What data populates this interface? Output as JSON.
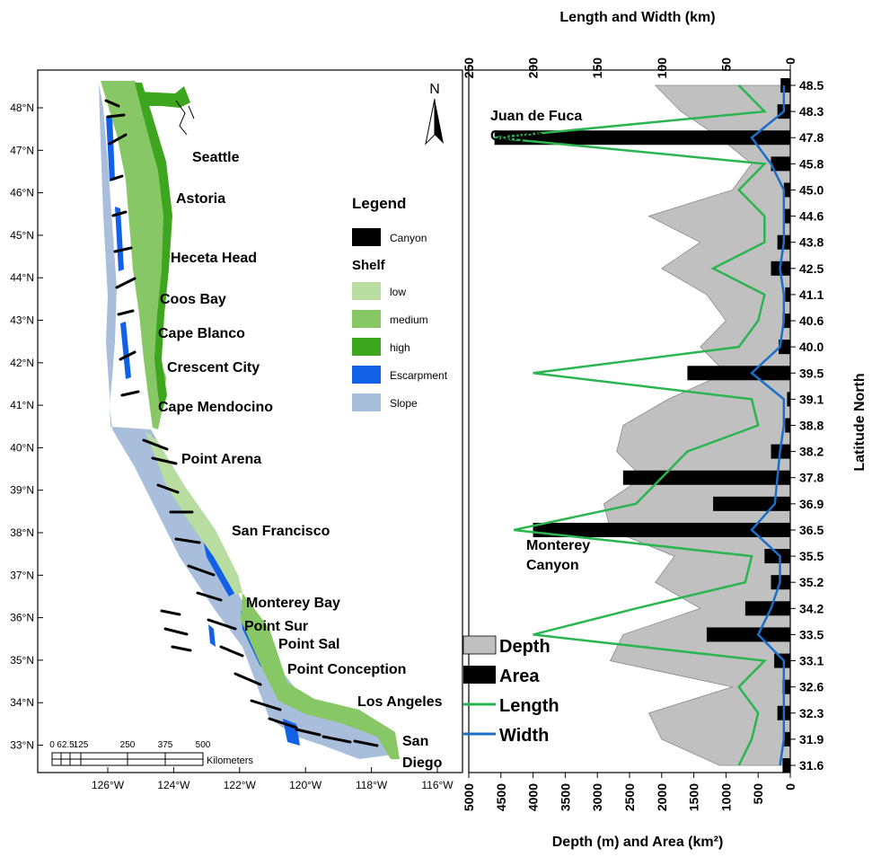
{
  "map": {
    "lat_ticks": [
      "48°N",
      "47°N",
      "46°N",
      "45°N",
      "44°N",
      "43°N",
      "42°N",
      "41°N",
      "40°N",
      "39°N",
      "38°N",
      "37°N",
      "36°N",
      "35°N",
      "34°N",
      "33°N"
    ],
    "lon_ticks": [
      "126°W",
      "124°W",
      "122°W",
      "120°W",
      "118°W",
      "116°W"
    ],
    "places": [
      "Seattle",
      "Astoria",
      "Heceta Head",
      "Coos Bay",
      "Cape Blanco",
      "Crescent City",
      "Cape Mendocino",
      "Point Arena",
      "San Francisco",
      "Monterey Bay",
      "Point Sur",
      "Point Sal",
      "Point Conception",
      "Los Angeles",
      "San",
      "Diego"
    ],
    "north": "N",
    "legend": {
      "title": "Legend",
      "canyon": "Canyon",
      "shelf_title": "Shelf",
      "items": [
        "low",
        "medium",
        "high",
        "Escarpment",
        "Slope"
      ]
    },
    "scale": {
      "ticks": [
        "0",
        "62.5",
        "125",
        "250",
        "375",
        "500"
      ],
      "unit": "Kilometers"
    },
    "colors": {
      "canyon": "#000000",
      "shelf_low": "#b9dca0",
      "shelf_medium": "#88c765",
      "shelf_high": "#3ea51e",
      "escarpment": "#1160e6",
      "slope": "#a8bedb"
    }
  },
  "chart_data": {
    "type": "bar",
    "orientation": "horizontal",
    "top_axis": {
      "label": "Length and Width (km)",
      "ticks": [
        "250",
        "200",
        "150",
        "100",
        "50",
        "0"
      ],
      "range": [
        0,
        250
      ]
    },
    "bottom_axis": {
      "label": "Depth (m) and Area (km²)",
      "ticks": [
        "5000",
        "4500",
        "4000",
        "3500",
        "3000",
        "2500",
        "2000",
        "1500",
        "1000",
        "500",
        "0"
      ],
      "range": [
        0,
        5000
      ]
    },
    "right_axis": {
      "label": "Latitude North",
      "ticks": [
        "48.5",
        "48.3",
        "47.8",
        "45.8",
        "45.0",
        "44.6",
        "43.8",
        "42.5",
        "41.1",
        "40.6",
        "40.0",
        "39.5",
        "39.1",
        "38.8",
        "38.2",
        "37.8",
        "36.9",
        "36.5",
        "35.5",
        "35.2",
        "34.2",
        "33.5",
        "33.1",
        "32.6",
        "32.3",
        "31.9",
        "31.6"
      ]
    },
    "annotations": [
      "Juan de Fuca",
      "Canyon",
      "Monterey",
      "Canyon"
    ],
    "legend": [
      "Depth",
      "Area",
      "Length",
      "Width"
    ],
    "colors": {
      "depth": "#c0c0c0",
      "area": "#000000",
      "length": "#2bb550",
      "width": "#1a70c8"
    },
    "categories": [
      "48.5",
      "48.3",
      "47.8",
      "45.8",
      "45.0",
      "44.6",
      "43.8",
      "42.5",
      "41.1",
      "40.6",
      "40.0",
      "39.5",
      "39.1",
      "38.8",
      "38.2",
      "37.8",
      "36.9",
      "36.5",
      "35.5",
      "35.2",
      "34.2",
      "33.5",
      "33.1",
      "32.6",
      "32.3",
      "31.9",
      "31.6"
    ],
    "series": [
      {
        "name": "Depth",
        "axis": "bottom",
        "values": [
          2100,
          1700,
          1100,
          600,
          900,
          2200,
          1400,
          2000,
          1300,
          1000,
          1400,
          1000,
          1900,
          2600,
          2700,
          2300,
          2900,
          2800,
          1800,
          2100,
          1400,
          2600,
          2800,
          900,
          2200,
          2000,
          1100
        ]
      },
      {
        "name": "Area",
        "axis": "bottom",
        "values": [
          150,
          200,
          4600,
          300,
          100,
          100,
          200,
          300,
          80,
          120,
          180,
          1600,
          50,
          80,
          300,
          2600,
          1200,
          4000,
          400,
          300,
          700,
          1300,
          250,
          120,
          200,
          100,
          120
        ]
      },
      {
        "name": "Length",
        "axis": "top",
        "values": [
          40,
          20,
          230,
          20,
          40,
          20,
          20,
          60,
          20,
          25,
          40,
          200,
          30,
          25,
          80,
          100,
          120,
          215,
          30,
          35,
          120,
          200,
          20,
          40,
          25,
          30,
          40
        ]
      },
      {
        "name": "Width",
        "axis": "top",
        "values": [
          5,
          5,
          30,
          15,
          5,
          5,
          5,
          8,
          5,
          5,
          8,
          30,
          5,
          5,
          8,
          10,
          12,
          30,
          8,
          8,
          15,
          25,
          5,
          5,
          5,
          5,
          8
        ]
      }
    ]
  }
}
